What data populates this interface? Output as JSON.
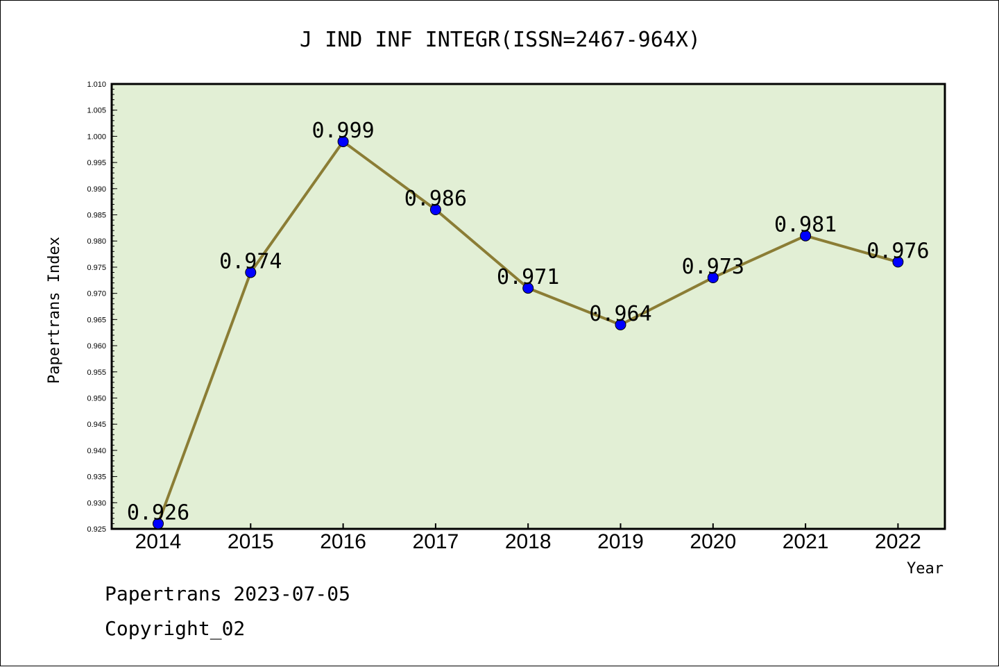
{
  "chart_data": {
    "type": "line",
    "title": "J IND INF INTEGR(ISSN=2467-964X)",
    "xlabel": "Year",
    "ylabel": "Papertrans Index",
    "categories": [
      "2014",
      "2015",
      "2016",
      "2017",
      "2018",
      "2019",
      "2020",
      "2021",
      "2022"
    ],
    "series": [
      {
        "values": [
          0.926,
          0.974,
          0.999,
          0.986,
          0.971,
          0.964,
          0.973,
          0.981,
          0.976
        ]
      }
    ],
    "data_labels": [
      "0.926",
      "0.974",
      "0.999",
      "0.986",
      "0.971",
      "0.964",
      "0.973",
      "0.981",
      "0.976"
    ],
    "ylim": [
      0.925,
      1.01
    ],
    "yticks": [
      "0.925",
      "0.930",
      "0.935",
      "0.940",
      "0.945",
      "0.950",
      "0.955",
      "0.960",
      "0.965",
      "0.970",
      "0.975",
      "0.980",
      "0.985",
      "0.990",
      "0.995",
      "1.000",
      "1.005",
      "1.010"
    ],
    "grid": false,
    "colors": {
      "plot_background": "#e2efd5",
      "line": "#8b7d35",
      "marker": "#0000ff"
    }
  },
  "footer": {
    "line1": "Papertrans 2023-07-05",
    "line2": "Copyright_02"
  }
}
